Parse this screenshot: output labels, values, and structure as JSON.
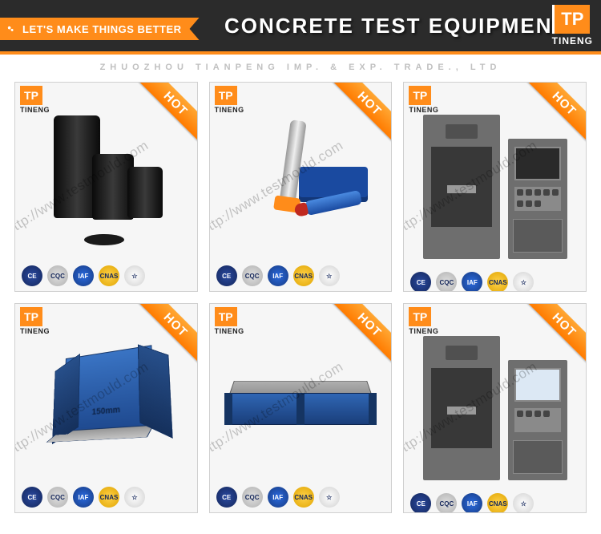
{
  "header": {
    "tagline": "LET'S MAKE THINGS BETTER",
    "title": "CONCRETE TEST EQUIPMENT",
    "brand": "TINENG",
    "logo_text": "TP"
  },
  "subheader": "ZHUOZHOU TIANPENG IMP. & EXP. TRADE., LTD",
  "watermark_url": "http://www.testmould.com",
  "hot_label": "HOT",
  "badges": {
    "ce": "CE",
    "cqc": "CQC",
    "iaf": "IAF",
    "cnas": "CNAS",
    "iso": "☆"
  },
  "cards": [
    {
      "brand": "TINENG",
      "cube_label": ""
    },
    {
      "brand": "TINENG",
      "cube_label": ""
    },
    {
      "brand": "TINENG",
      "cube_label": ""
    },
    {
      "brand": "TINENG",
      "cube_label": "150mm"
    },
    {
      "brand": "TINENG",
      "cube_label": ""
    },
    {
      "brand": "TINENG",
      "cube_label": ""
    }
  ],
  "colors": {
    "accent": "#ff8c1a",
    "header_bg": "#2b2b2b",
    "card_border": "#d0d0d0",
    "card_bg": "#f6f6f6",
    "blue_mould": "#2f66b4",
    "machine_grey": "#6e6e6e"
  }
}
